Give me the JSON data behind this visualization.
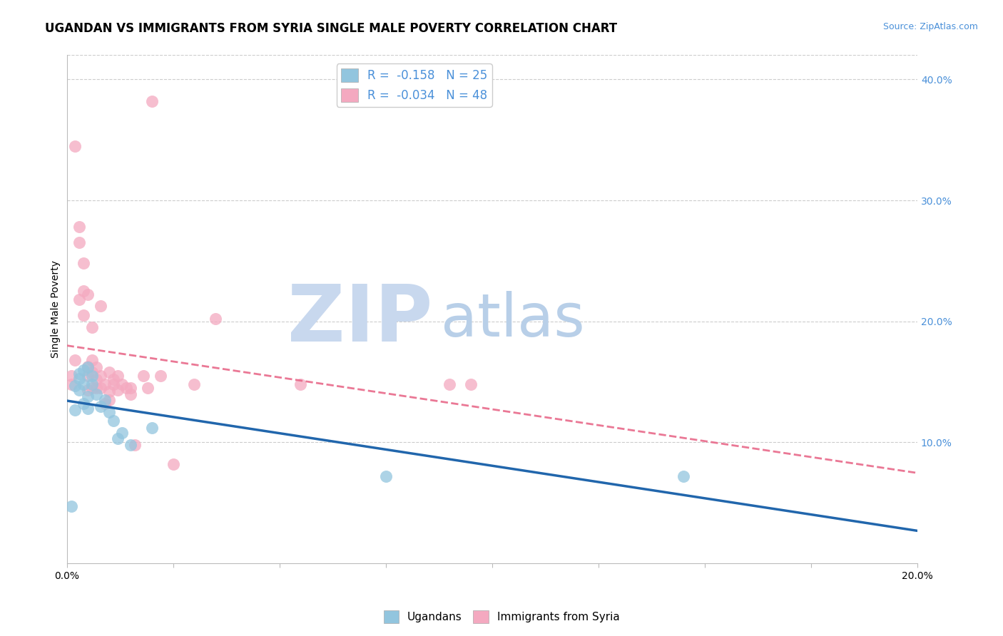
{
  "title": "UGANDAN VS IMMIGRANTS FROM SYRIA SINGLE MALE POVERTY CORRELATION CHART",
  "source": "Source: ZipAtlas.com",
  "ylabel": "Single Male Poverty",
  "xlabel": "",
  "xlim": [
    0.0,
    0.2
  ],
  "ylim": [
    0.0,
    0.42
  ],
  "xticks": [
    0.0,
    0.025,
    0.05,
    0.075,
    0.1,
    0.125,
    0.15,
    0.175,
    0.2
  ],
  "xtick_labels_show": [
    "0.0%",
    "",
    "",
    "",
    "",
    "",
    "",
    "",
    "20.0%"
  ],
  "yticks_right": [
    0.1,
    0.2,
    0.3,
    0.4
  ],
  "ytick_right_labels": [
    "10.0%",
    "20.0%",
    "30.0%",
    "40.0%"
  ],
  "ugandan_color": "#92c5de",
  "syria_color": "#f4a9c0",
  "ugandan_line_color": "#2166ac",
  "syria_line_color": "#e8698a",
  "legend_R_ugandan": "R =  -0.158",
  "legend_N_ugandan": "N = 25",
  "legend_R_syria": "R =  -0.034",
  "legend_N_syria": "N = 48",
  "watermark_zip": "ZIP",
  "watermark_atlas": "atlas",
  "ugandan_x": [
    0.001,
    0.002,
    0.002,
    0.003,
    0.003,
    0.003,
    0.004,
    0.004,
    0.004,
    0.005,
    0.005,
    0.005,
    0.006,
    0.006,
    0.007,
    0.008,
    0.009,
    0.01,
    0.011,
    0.012,
    0.013,
    0.015,
    0.02,
    0.075,
    0.145
  ],
  "ugandan_y": [
    0.047,
    0.147,
    0.127,
    0.157,
    0.143,
    0.153,
    0.16,
    0.132,
    0.148,
    0.162,
    0.128,
    0.138,
    0.148,
    0.155,
    0.14,
    0.13,
    0.135,
    0.125,
    0.118,
    0.103,
    0.108,
    0.098,
    0.112,
    0.072,
    0.072
  ],
  "syria_x": [
    0.001,
    0.001,
    0.002,
    0.002,
    0.003,
    0.003,
    0.003,
    0.004,
    0.004,
    0.004,
    0.005,
    0.005,
    0.005,
    0.005,
    0.006,
    0.006,
    0.006,
    0.006,
    0.007,
    0.007,
    0.007,
    0.008,
    0.008,
    0.008,
    0.009,
    0.009,
    0.01,
    0.01,
    0.01,
    0.011,
    0.011,
    0.012,
    0.012,
    0.013,
    0.014,
    0.015,
    0.015,
    0.016,
    0.018,
    0.019,
    0.02,
    0.022,
    0.025,
    0.03,
    0.035,
    0.055,
    0.09,
    0.095
  ],
  "syria_y": [
    0.148,
    0.155,
    0.168,
    0.345,
    0.278,
    0.265,
    0.218,
    0.248,
    0.225,
    0.205,
    0.222,
    0.155,
    0.143,
    0.163,
    0.195,
    0.158,
    0.145,
    0.168,
    0.145,
    0.162,
    0.152,
    0.213,
    0.155,
    0.145,
    0.132,
    0.148,
    0.158,
    0.142,
    0.135,
    0.152,
    0.148,
    0.155,
    0.143,
    0.148,
    0.145,
    0.145,
    0.14,
    0.098,
    0.155,
    0.145,
    0.382,
    0.155,
    0.082,
    0.148,
    0.202,
    0.148,
    0.148,
    0.148
  ],
  "background_color": "#ffffff",
  "grid_color": "#cccccc",
  "title_fontsize": 12,
  "label_fontsize": 10,
  "tick_fontsize": 10,
  "source_fontsize": 9,
  "watermark_color_zip": "#c8d8ee",
  "watermark_color_atlas": "#b8cfe8",
  "watermark_fontsize": 80
}
